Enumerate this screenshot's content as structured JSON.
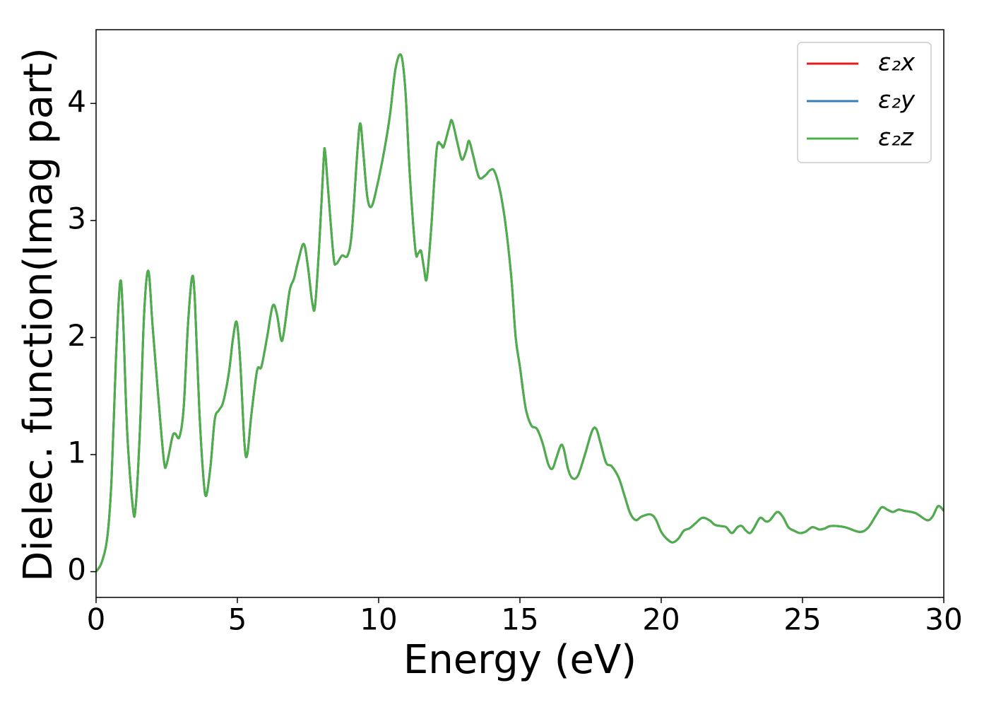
{
  "chart_data": {
    "type": "line",
    "x_label": "Energy (eV)",
    "y_label": "Dielec. function(Imag part)",
    "xlim": [
      0,
      30
    ],
    "xticks": [
      0,
      5,
      10,
      15,
      20,
      25,
      30
    ],
    "ylim": [
      -0.22,
      4.63
    ],
    "yticks": [
      0,
      1,
      2,
      3,
      4
    ],
    "legend": "upper right",
    "x": [
      0,
      0.2,
      0.4,
      0.55,
      0.7,
      0.85,
      0.95,
      1.1,
      1.3,
      1.4,
      1.55,
      1.7,
      1.85,
      2.0,
      2.2,
      2.4,
      2.5,
      2.7,
      2.8,
      2.95,
      3.1,
      3.25,
      3.4,
      3.5,
      3.65,
      3.8,
      3.9,
      4.05,
      4.2,
      4.35,
      4.5,
      4.7,
      4.85,
      4.98,
      5.1,
      5.25,
      5.35,
      5.5,
      5.7,
      5.85,
      6.05,
      6.25,
      6.4,
      6.55,
      6.65,
      6.85,
      7.0,
      7.15,
      7.35,
      7.5,
      7.65,
      7.75,
      7.9,
      8.05,
      8.1,
      8.2,
      8.4,
      8.5,
      8.7,
      8.9,
      9.05,
      9.25,
      9.35,
      9.45,
      9.6,
      9.75,
      9.95,
      10.2,
      10.4,
      10.6,
      10.8,
      10.95,
      11.1,
      11.3,
      11.4,
      11.5,
      11.6,
      11.7,
      11.85,
      12.05,
      12.2,
      12.3,
      12.5,
      12.6,
      12.8,
      12.95,
      13.1,
      13.2,
      13.35,
      13.55,
      13.75,
      13.95,
      14.1,
      14.3,
      14.5,
      14.7,
      14.85,
      15.0,
      15.2,
      15.4,
      15.6,
      15.8,
      16.0,
      16.15,
      16.3,
      16.45,
      16.55,
      16.7,
      16.85,
      17.05,
      17.3,
      17.55,
      17.7,
      17.85,
      18.05,
      18.25,
      18.5,
      18.7,
      18.9,
      19.1,
      19.3,
      19.6,
      19.8,
      20.0,
      20.2,
      20.4,
      20.6,
      20.8,
      21.0,
      21.2,
      21.45,
      21.7,
      21.9,
      22.1,
      22.3,
      22.5,
      22.7,
      22.85,
      23.0,
      23.15,
      23.3,
      23.5,
      23.7,
      23.85,
      24.1,
      24.3,
      24.5,
      24.7,
      24.9,
      25.1,
      25.35,
      25.6,
      25.8,
      26.0,
      26.5,
      27.0,
      27.3,
      27.6,
      27.8,
      28.0,
      28.2,
      28.4,
      28.6,
      29.0,
      29.4,
      29.6,
      29.8,
      30.0
    ],
    "series": [
      {
        "name": "ε₂x",
        "color": "#e41a1c",
        "values": [
          0,
          0.08,
          0.3,
          0.8,
          1.8,
          2.47,
          2.2,
          1.2,
          0.55,
          0.55,
          1.2,
          2.2,
          2.57,
          2.1,
          1.5,
          0.95,
          0.92,
          1.15,
          1.18,
          1.15,
          1.4,
          2.1,
          2.52,
          2.3,
          1.4,
          0.8,
          0.65,
          0.9,
          1.3,
          1.38,
          1.45,
          1.7,
          2.0,
          2.13,
          1.8,
          1.1,
          1.0,
          1.35,
          1.72,
          1.75,
          2.0,
          2.27,
          2.2,
          1.98,
          2.05,
          2.4,
          2.5,
          2.65,
          2.8,
          2.6,
          2.3,
          2.27,
          2.8,
          3.5,
          3.6,
          3.3,
          2.7,
          2.63,
          2.7,
          2.7,
          2.9,
          3.6,
          3.83,
          3.6,
          3.2,
          3.12,
          3.3,
          3.6,
          3.9,
          4.3,
          4.41,
          4.1,
          3.4,
          2.75,
          2.72,
          2.74,
          2.6,
          2.5,
          2.9,
          3.6,
          3.65,
          3.63,
          3.8,
          3.85,
          3.65,
          3.52,
          3.6,
          3.68,
          3.55,
          3.37,
          3.38,
          3.43,
          3.42,
          3.25,
          2.95,
          2.5,
          2.0,
          1.75,
          1.4,
          1.25,
          1.22,
          1.1,
          0.92,
          0.88,
          0.98,
          1.08,
          1.05,
          0.88,
          0.8,
          0.82,
          1.0,
          1.2,
          1.22,
          1.1,
          0.93,
          0.9,
          0.8,
          0.65,
          0.5,
          0.44,
          0.47,
          0.49,
          0.45,
          0.34,
          0.28,
          0.25,
          0.28,
          0.35,
          0.37,
          0.41,
          0.46,
          0.44,
          0.4,
          0.39,
          0.38,
          0.33,
          0.38,
          0.39,
          0.35,
          0.33,
          0.38,
          0.46,
          0.43,
          0.44,
          0.51,
          0.47,
          0.38,
          0.35,
          0.33,
          0.34,
          0.38,
          0.36,
          0.37,
          0.39,
          0.38,
          0.34,
          0.37,
          0.48,
          0.55,
          0.53,
          0.51,
          0.53,
          0.52,
          0.5,
          0.44,
          0.47,
          0.56,
          0.52
        ]
      },
      {
        "name": "ε₂y",
        "color": "#377eb8",
        "values": [
          0,
          0.08,
          0.3,
          0.8,
          1.8,
          2.47,
          2.2,
          1.2,
          0.55,
          0.55,
          1.2,
          2.2,
          2.57,
          2.1,
          1.5,
          0.95,
          0.92,
          1.15,
          1.18,
          1.15,
          1.4,
          2.1,
          2.52,
          2.3,
          1.4,
          0.8,
          0.65,
          0.9,
          1.3,
          1.38,
          1.45,
          1.7,
          2.0,
          2.13,
          1.8,
          1.1,
          1.0,
          1.35,
          1.72,
          1.75,
          2.0,
          2.27,
          2.2,
          1.98,
          2.05,
          2.4,
          2.5,
          2.65,
          2.8,
          2.6,
          2.3,
          2.27,
          2.8,
          3.5,
          3.6,
          3.3,
          2.7,
          2.63,
          2.7,
          2.7,
          2.9,
          3.6,
          3.83,
          3.6,
          3.2,
          3.12,
          3.3,
          3.6,
          3.9,
          4.3,
          4.41,
          4.1,
          3.4,
          2.75,
          2.72,
          2.74,
          2.6,
          2.5,
          2.9,
          3.6,
          3.65,
          3.63,
          3.8,
          3.85,
          3.65,
          3.52,
          3.6,
          3.68,
          3.55,
          3.37,
          3.38,
          3.43,
          3.42,
          3.25,
          2.95,
          2.5,
          2.0,
          1.75,
          1.4,
          1.25,
          1.22,
          1.1,
          0.92,
          0.88,
          0.98,
          1.08,
          1.05,
          0.88,
          0.8,
          0.82,
          1.0,
          1.2,
          1.22,
          1.1,
          0.93,
          0.9,
          0.8,
          0.65,
          0.5,
          0.44,
          0.47,
          0.49,
          0.45,
          0.34,
          0.28,
          0.25,
          0.28,
          0.35,
          0.37,
          0.41,
          0.46,
          0.44,
          0.4,
          0.39,
          0.38,
          0.33,
          0.38,
          0.39,
          0.35,
          0.33,
          0.38,
          0.46,
          0.43,
          0.44,
          0.51,
          0.47,
          0.38,
          0.35,
          0.33,
          0.34,
          0.38,
          0.36,
          0.37,
          0.39,
          0.38,
          0.34,
          0.37,
          0.48,
          0.55,
          0.53,
          0.51,
          0.53,
          0.52,
          0.5,
          0.44,
          0.47,
          0.56,
          0.52
        ]
      },
      {
        "name": "ε₂z",
        "color": "#4daf4a",
        "values": [
          0,
          0.08,
          0.3,
          0.8,
          1.8,
          2.47,
          2.2,
          1.2,
          0.55,
          0.55,
          1.2,
          2.2,
          2.57,
          2.1,
          1.5,
          0.95,
          0.92,
          1.15,
          1.18,
          1.15,
          1.4,
          2.1,
          2.52,
          2.3,
          1.4,
          0.8,
          0.65,
          0.9,
          1.3,
          1.38,
          1.45,
          1.7,
          2.0,
          2.13,
          1.8,
          1.1,
          1.0,
          1.35,
          1.72,
          1.75,
          2.0,
          2.27,
          2.2,
          1.98,
          2.05,
          2.4,
          2.5,
          2.65,
          2.8,
          2.6,
          2.3,
          2.27,
          2.8,
          3.5,
          3.6,
          3.3,
          2.7,
          2.63,
          2.7,
          2.7,
          2.9,
          3.6,
          3.83,
          3.6,
          3.2,
          3.12,
          3.3,
          3.6,
          3.9,
          4.3,
          4.41,
          4.1,
          3.4,
          2.75,
          2.72,
          2.74,
          2.6,
          2.5,
          2.9,
          3.6,
          3.65,
          3.63,
          3.8,
          3.85,
          3.65,
          3.52,
          3.6,
          3.68,
          3.55,
          3.37,
          3.38,
          3.43,
          3.42,
          3.25,
          2.95,
          2.5,
          2.0,
          1.75,
          1.4,
          1.25,
          1.22,
          1.1,
          0.92,
          0.88,
          0.98,
          1.08,
          1.05,
          0.88,
          0.8,
          0.82,
          1.0,
          1.2,
          1.22,
          1.1,
          0.93,
          0.9,
          0.8,
          0.65,
          0.5,
          0.44,
          0.47,
          0.49,
          0.45,
          0.34,
          0.28,
          0.25,
          0.28,
          0.35,
          0.37,
          0.41,
          0.46,
          0.44,
          0.4,
          0.39,
          0.38,
          0.33,
          0.38,
          0.39,
          0.35,
          0.33,
          0.38,
          0.46,
          0.43,
          0.44,
          0.51,
          0.47,
          0.38,
          0.35,
          0.33,
          0.34,
          0.38,
          0.36,
          0.37,
          0.39,
          0.38,
          0.34,
          0.37,
          0.48,
          0.55,
          0.53,
          0.51,
          0.53,
          0.52,
          0.5,
          0.44,
          0.47,
          0.56,
          0.52
        ]
      }
    ]
  }
}
